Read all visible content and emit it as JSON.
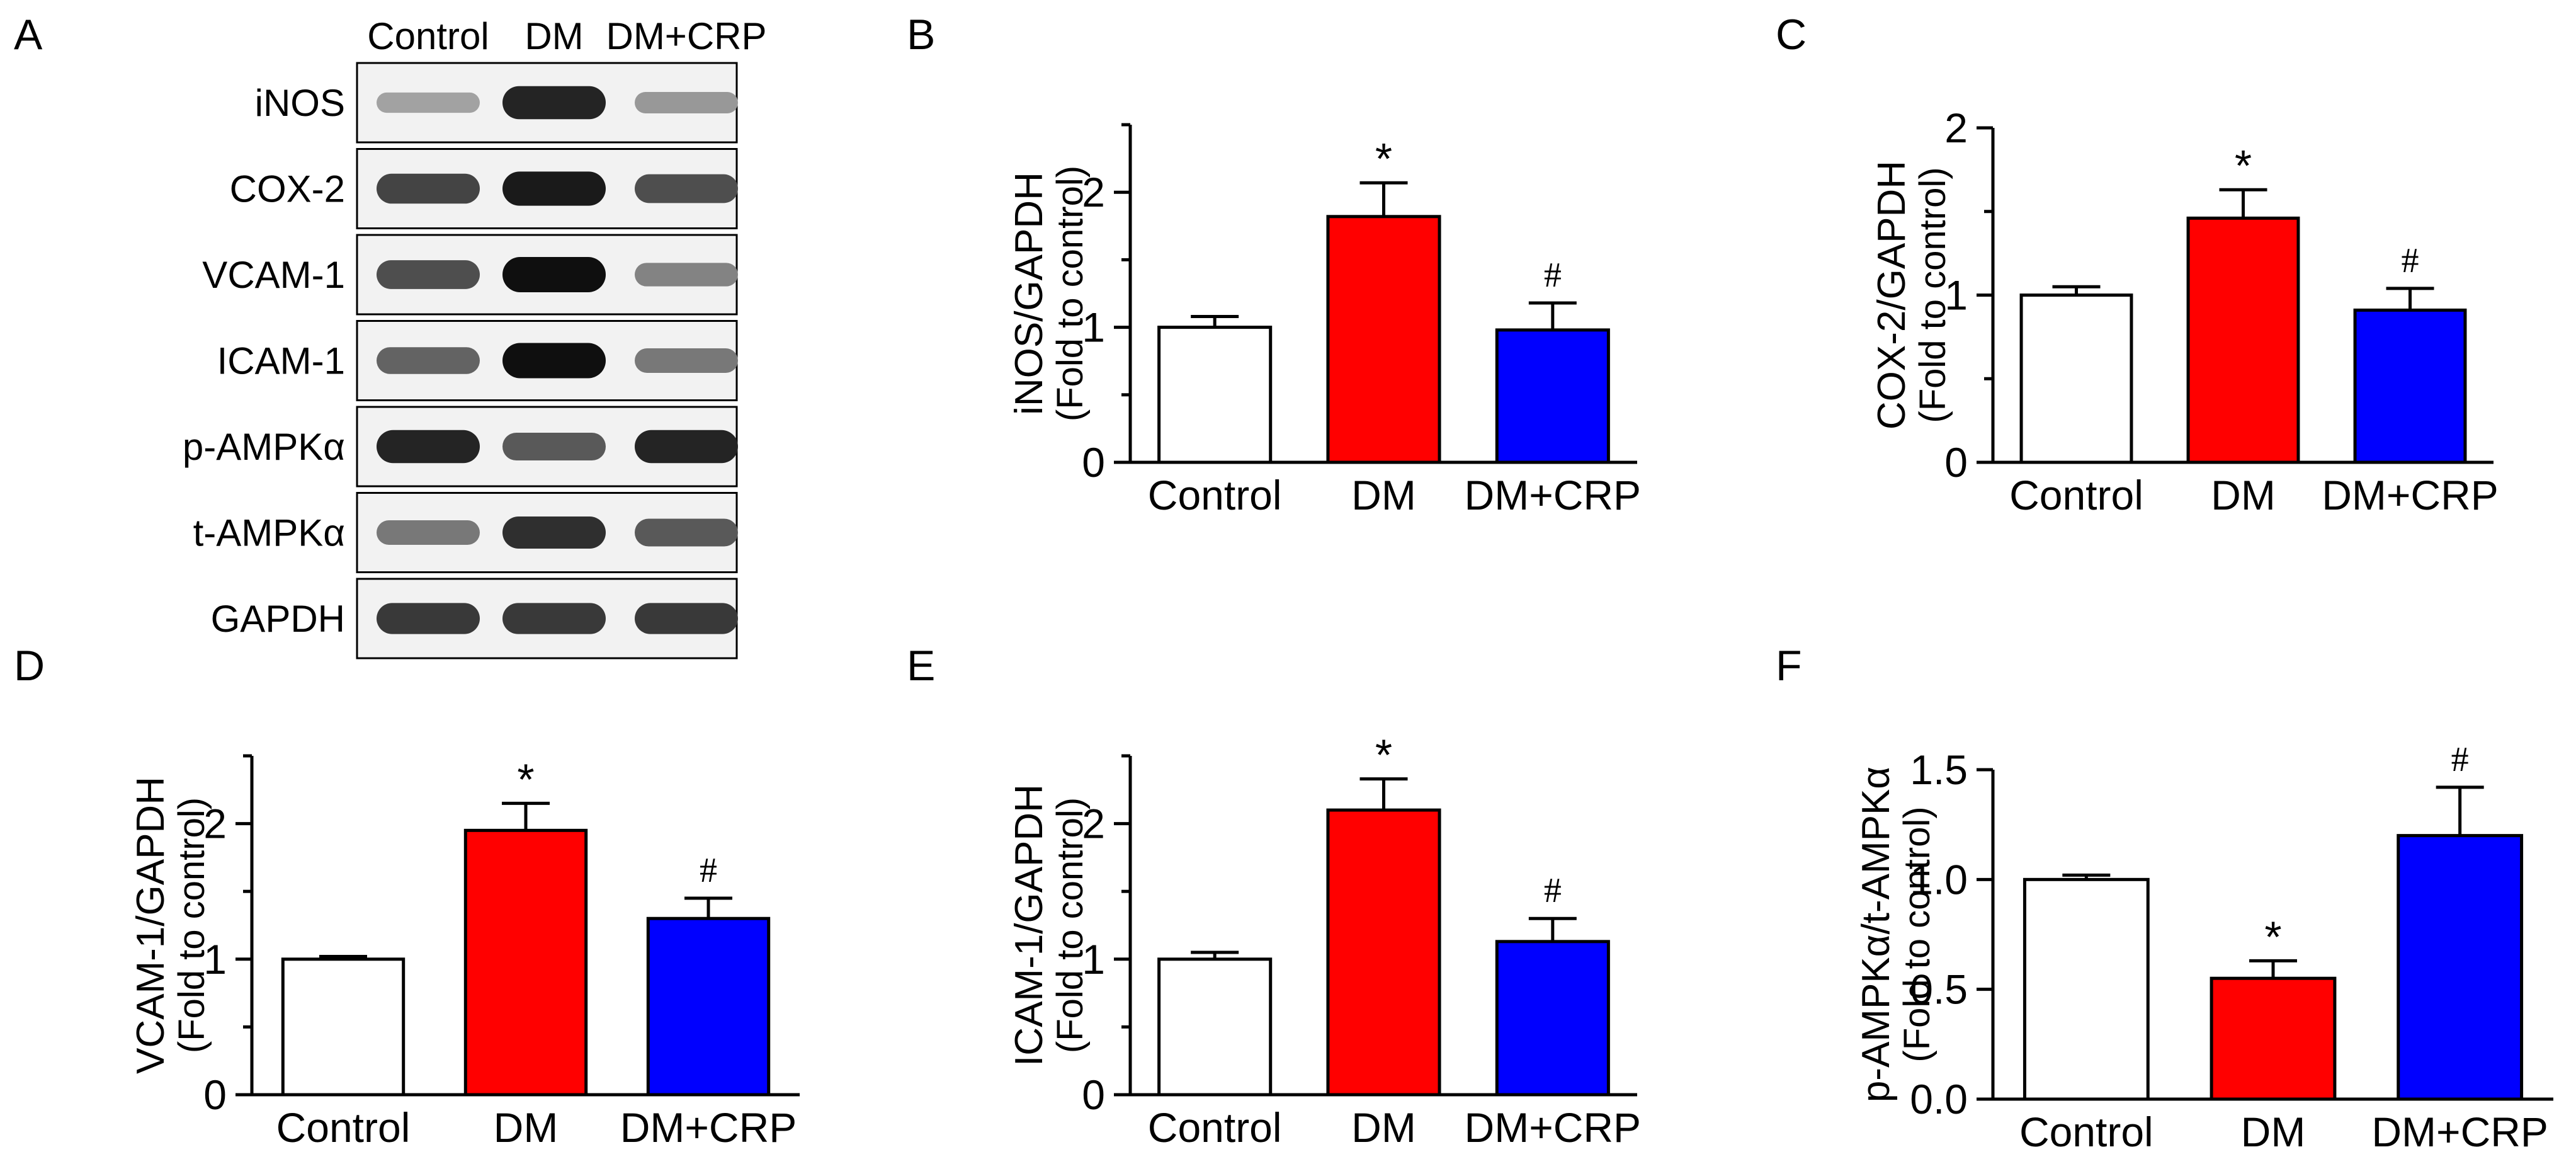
{
  "figure": {
    "panel_a": {
      "letter": "A",
      "lanes": [
        "Control",
        "DM",
        "DM+CRP"
      ],
      "blots": [
        {
          "label": "iNOS",
          "intensity": [
            0.3,
            0.9,
            0.35
          ]
        },
        {
          "label": "COX-2",
          "intensity": [
            0.75,
            0.95,
            0.7
          ]
        },
        {
          "label": "VCAM-1",
          "intensity": [
            0.7,
            1.0,
            0.45
          ]
        },
        {
          "label": "ICAM-1",
          "intensity": [
            0.6,
            1.0,
            0.5
          ]
        },
        {
          "label": "p-AMPKα",
          "intensity": [
            0.9,
            0.65,
            0.9
          ]
        },
        {
          "label": "t-AMPKα",
          "intensity": [
            0.5,
            0.85,
            0.65
          ]
        },
        {
          "label": "GAPDH",
          "intensity": [
            0.8,
            0.8,
            0.8
          ]
        }
      ]
    }
  },
  "chart_data": [
    {
      "panel": "B",
      "type": "bar",
      "categories": [
        "Control",
        "DM",
        "DM+CRP"
      ],
      "values": [
        1.0,
        1.82,
        0.98
      ],
      "errors": [
        0.08,
        0.25,
        0.2
      ],
      "colors": [
        "#ffffff",
        "#ff0000",
        "#0000ff"
      ],
      "significance": [
        "",
        "*",
        "#"
      ],
      "ylabel": "iNOS/GAPDH",
      "ylabel2": "(Fold to control)",
      "ylim": [
        0,
        2.5
      ],
      "yticks": [
        0,
        1,
        2
      ],
      "ytick_labels": [
        "0",
        "1",
        "2"
      ],
      "minor_ticks": [
        0.5,
        1.5,
        2.5
      ]
    },
    {
      "panel": "C",
      "type": "bar",
      "categories": [
        "Control",
        "DM",
        "DM+CRP"
      ],
      "values": [
        1.0,
        1.46,
        0.91
      ],
      "errors": [
        0.05,
        0.17,
        0.13
      ],
      "colors": [
        "#ffffff",
        "#ff0000",
        "#0000ff"
      ],
      "significance": [
        "",
        "*",
        "#"
      ],
      "ylabel": "COX-2/GAPDH",
      "ylabel2": "(Fold to control)",
      "ylim": [
        0,
        2
      ],
      "yticks": [
        0,
        1,
        2
      ],
      "ytick_labels": [
        "0",
        "1",
        "2"
      ],
      "minor_ticks": [
        0.5,
        1.5
      ]
    },
    {
      "panel": "D",
      "type": "bar",
      "categories": [
        "Control",
        "DM",
        "DM+CRP"
      ],
      "values": [
        1.0,
        1.95,
        1.3
      ],
      "errors": [
        0.02,
        0.2,
        0.15
      ],
      "colors": [
        "#ffffff",
        "#ff0000",
        "#0000ff"
      ],
      "significance": [
        "",
        "*",
        "#"
      ],
      "ylabel": "VCAM-1/GAPDH",
      "ylabel2": "(Fold to control)",
      "ylim": [
        0,
        2.5
      ],
      "yticks": [
        0,
        1,
        2
      ],
      "ytick_labels": [
        "0",
        "1",
        "2"
      ],
      "minor_ticks": [
        0.5,
        1.5,
        2.5
      ]
    },
    {
      "panel": "E",
      "type": "bar",
      "categories": [
        "Control",
        "DM",
        "DM+CRP"
      ],
      "values": [
        1.0,
        2.1,
        1.13
      ],
      "errors": [
        0.05,
        0.23,
        0.17
      ],
      "colors": [
        "#ffffff",
        "#ff0000",
        "#0000ff"
      ],
      "significance": [
        "",
        "*",
        "#"
      ],
      "ylabel": "ICAM-1/GAPDH",
      "ylabel2": "(Fold to control)",
      "ylim": [
        0,
        2.5
      ],
      "yticks": [
        0,
        1,
        2
      ],
      "ytick_labels": [
        "0",
        "1",
        "2"
      ],
      "minor_ticks": [
        0.5,
        1.5,
        2.5
      ]
    },
    {
      "panel": "F",
      "type": "bar",
      "categories": [
        "Control",
        "DM",
        "DM+CRP"
      ],
      "values": [
        1.0,
        0.55,
        1.2
      ],
      "errors": [
        0.02,
        0.08,
        0.22
      ],
      "colors": [
        "#ffffff",
        "#ff0000",
        "#0000ff"
      ],
      "significance": [
        "",
        "*",
        "#"
      ],
      "ylabel": "p-AMPKα/t-AMPKα",
      "ylabel2": "(Fold to control)",
      "ylim": [
        0,
        1.5
      ],
      "yticks": [
        0,
        0.5,
        1,
        1.5
      ],
      "ytick_labels": [
        "0.0",
        "0.5",
        "1.0",
        "1.5"
      ],
      "minor_ticks": []
    }
  ]
}
